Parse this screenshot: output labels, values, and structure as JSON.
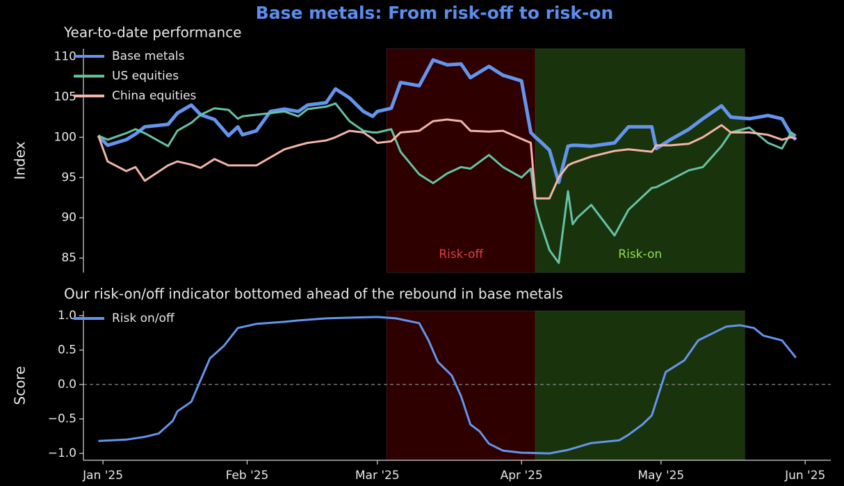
{
  "title": "Base metals: From risk-off to risk-on",
  "chart_data": [
    {
      "type": "line",
      "title": "Year-to-date performance",
      "ylabel": "Index",
      "xlim": [
        -4.2,
        156.5
      ],
      "ylim": [
        83.2,
        111
      ],
      "yticks": [
        85,
        90,
        95,
        100,
        105,
        110
      ],
      "legend": "upper left",
      "spans": [
        {
          "label": "Risk-off",
          "start": 61,
          "end": 93,
          "color": "#2e0000",
          "label_color": "#e04040"
        },
        {
          "label": "Risk-on",
          "start": 93,
          "end": 138,
          "color": "#19330c",
          "label_color": "#8fe04a"
        }
      ],
      "x": [
        -1,
        1,
        5,
        7,
        9,
        14,
        16,
        19,
        21,
        24,
        27,
        29,
        30,
        33,
        36,
        39,
        42,
        44,
        48,
        50,
        53,
        56,
        58,
        59,
        62,
        64,
        68,
        71,
        74,
        77,
        79,
        83,
        86,
        90,
        92,
        93,
        94,
        96,
        98,
        100,
        101,
        102,
        105,
        110,
        113,
        118,
        119,
        122,
        126,
        129,
        133,
        135,
        139,
        143,
        146,
        148,
        149
      ],
      "series": [
        {
          "name": "Base metals",
          "color": "#6495ed",
          "values": [
            100.2,
            99,
            99.7,
            100.4,
            101.3,
            101.6,
            103,
            104,
            102.8,
            102.2,
            100.2,
            101.3,
            100.3,
            100.8,
            103.2,
            103.5,
            103.2,
            104,
            104.3,
            106,
            104.9,
            103.2,
            102.6,
            103.2,
            103.6,
            106.8,
            106.4,
            109.6,
            109,
            109.1,
            107.4,
            108.8,
            107.7,
            107,
            100.6,
            100,
            99.5,
            98.4,
            94.4,
            98.9,
            99,
            99,
            98.9,
            99.3,
            101.3,
            101.3,
            98.6,
            99.7,
            101,
            102.3,
            103.9,
            102.5,
            102.3,
            102.7,
            102.3,
            100.3,
            99.7
          ]
        },
        {
          "name": "US equities",
          "color": "#66c2a5",
          "values": [
            100.2,
            99.7,
            100.5,
            101,
            100.5,
            98.9,
            100.8,
            101.8,
            102.8,
            103.6,
            103.4,
            102.3,
            102.6,
            102.8,
            103,
            103.2,
            102.6,
            103.5,
            103.8,
            104.2,
            102,
            100.8,
            100.6,
            100.6,
            101,
            98.2,
            95.4,
            94.3,
            95.5,
            96.3,
            96.1,
            97.8,
            96.3,
            95,
            96.1,
            91.6,
            89.5,
            86,
            84.4,
            93.3,
            89.2,
            90,
            91.6,
            87.8,
            91,
            93.7,
            93.8,
            94.7,
            95.9,
            96.3,
            98.9,
            100.6,
            101.2,
            99.3,
            98.6,
            100.6,
            100.2
          ]
        },
        {
          "name": "China equities",
          "color": "#f2b5a9",
          "values": [
            100.2,
            97,
            95.8,
            96.3,
            94.6,
            96.5,
            97,
            96.6,
            96.2,
            97.3,
            96.5,
            96.5,
            96.5,
            96.5,
            97.5,
            98.5,
            99,
            99.3,
            99.6,
            100,
            100.8,
            100.6,
            99.8,
            99.3,
            99.5,
            100.6,
            100.8,
            102,
            102.2,
            102,
            100.8,
            100.7,
            100.8,
            99.8,
            99.3,
            92.4,
            92.4,
            92.4,
            95,
            96.5,
            96.8,
            97,
            97.6,
            98.3,
            98.5,
            98.2,
            99,
            99,
            99.2,
            100,
            101.5,
            100.6,
            100.6,
            100.3,
            99.7,
            100,
            99.8
          ]
        }
      ]
    },
    {
      "type": "line",
      "title": "Our risk-on/off indicator bottomed ahead of the rebound in base metals",
      "ylabel": "Score",
      "xlim": [
        -4.2,
        156.5
      ],
      "ylim": [
        -1.1,
        1.07
      ],
      "xticks": [
        {
          "value": 0,
          "label": "Jan '25"
        },
        {
          "value": 31,
          "label": "Feb '25"
        },
        {
          "value": 59,
          "label": "Mar '25"
        },
        {
          "value": 90,
          "label": "Apr '25"
        },
        {
          "value": 120,
          "label": "May '25"
        },
        {
          "value": 151,
          "label": "Jun '25"
        }
      ],
      "yticks": [
        {
          "value": -1,
          "label": "−1.0"
        },
        {
          "value": -0.5,
          "label": "−0.5"
        },
        {
          "value": 0,
          "label": "0.0"
        },
        {
          "value": 0.5,
          "label": "0.5"
        },
        {
          "value": 1,
          "label": "1.0"
        }
      ],
      "hline": 0,
      "legend": "upper left",
      "spans": [
        {
          "start": 61,
          "end": 93,
          "color": "#2e0000"
        },
        {
          "start": 93,
          "end": 138,
          "color": "#19330c"
        }
      ],
      "x": [
        -1,
        5,
        9,
        12,
        15,
        16,
        19,
        23,
        26,
        29,
        33,
        39,
        42,
        48,
        53,
        59,
        63,
        68,
        70,
        72,
        75,
        77,
        79,
        81,
        83,
        86,
        90,
        96,
        100,
        105,
        111,
        113,
        116,
        118,
        121,
        125,
        128,
        131,
        134,
        137,
        140,
        142,
        146,
        149
      ],
      "series": [
        {
          "name": "Risk on/off",
          "color": "#6495ed",
          "values": [
            -0.82,
            -0.8,
            -0.76,
            -0.71,
            -0.53,
            -0.39,
            -0.25,
            0.38,
            0.56,
            0.82,
            0.88,
            0.91,
            0.93,
            0.96,
            0.97,
            0.98,
            0.96,
            0.89,
            0.64,
            0.33,
            0.13,
            -0.17,
            -0.58,
            -0.68,
            -0.86,
            -0.96,
            -0.99,
            -1.0,
            -0.95,
            -0.85,
            -0.81,
            -0.73,
            -0.58,
            -0.45,
            0.18,
            0.35,
            0.64,
            0.74,
            0.84,
            0.86,
            0.82,
            0.71,
            0.64,
            0.39
          ]
        }
      ]
    }
  ]
}
